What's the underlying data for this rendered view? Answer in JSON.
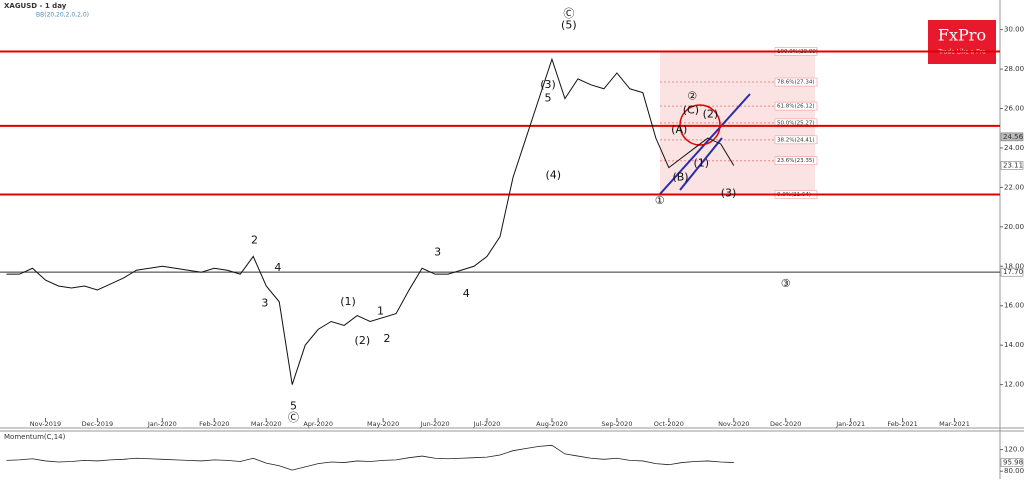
{
  "chart_data": {
    "type": "line",
    "title": "XAGUSD - 1 day",
    "subtitle": "BB(20,20,2,0,2,0)",
    "categories": [
      null,
      null,
      null,
      "Nov-2019",
      null,
      null,
      null,
      "Dec-2019",
      null,
      null,
      null,
      null,
      "Jan-2020",
      null,
      null,
      null,
      "Feb-2020",
      null,
      null,
      null,
      "Mar-2020",
      null,
      null,
      null,
      "Apr-2020",
      null,
      null,
      null,
      null,
      "May-2020",
      null,
      null,
      null,
      "Jun-2020",
      null,
      null,
      null,
      "Jul-2020",
      null,
      null,
      null,
      null,
      "Aug-2020",
      null,
      null,
      null,
      null,
      "Sep-2020",
      null,
      null,
      null,
      "Oct-2020",
      null,
      null,
      null,
      null,
      "Nov-2020",
      null,
      null,
      null,
      "Dec-2020",
      null,
      null,
      null,
      null,
      "Jan-2021",
      null,
      null,
      null,
      "Feb-2021",
      null,
      null,
      null,
      "Mar-2021",
      null,
      null,
      null
    ],
    "series": [
      {
        "name": "XAGUSD",
        "color": "#111111",
        "values": [
          17.6,
          17.6,
          17.9,
          17.3,
          17.0,
          16.9,
          17.0,
          16.8,
          17.1,
          17.4,
          17.8,
          17.9,
          18.0,
          17.9,
          17.8,
          17.7,
          17.9,
          17.8,
          17.6,
          18.5,
          17.0,
          16.2,
          12.0,
          14.0,
          14.8,
          15.2,
          15.0,
          15.5,
          15.2,
          15.4,
          15.6,
          16.8,
          17.9,
          17.6,
          17.6,
          17.8,
          18.0,
          18.5,
          19.5,
          22.5,
          24.5,
          26.5,
          28.5,
          26.5,
          27.5,
          27.2,
          27.0,
          27.8,
          27.0,
          26.8,
          24.5,
          23.0,
          23.5,
          24.0,
          24.5,
          24.2,
          23.11,
          null,
          null,
          null,
          null,
          null,
          null,
          null,
          null,
          null,
          null,
          null,
          null,
          null,
          null,
          null,
          null,
          null,
          null,
          null,
          null
        ]
      }
    ],
    "ylim": [
      9.8,
      31.5
    ],
    "yticks": [
      {
        "value": 12,
        "label": "12.00"
      },
      {
        "value": 14,
        "label": "14.00"
      },
      {
        "value": 16,
        "label": "16.00"
      },
      {
        "value": 18,
        "label": "18.00"
      },
      {
        "value": 20,
        "label": "20.00"
      },
      {
        "value": 22,
        "label": "22.00"
      },
      {
        "value": 24,
        "label": "24.00"
      },
      {
        "value": 26,
        "label": "26.00"
      },
      {
        "value": 28,
        "label": "28.00"
      },
      {
        "value": 30,
        "label": "30.00"
      }
    ],
    "levels": [
      {
        "value": 28.89,
        "color": "#e00000"
      },
      {
        "value": 25.12,
        "color": "#e00000"
      },
      {
        "value": 21.64,
        "color": "#e00000"
      },
      {
        "value": 17.7,
        "color": "#333333"
      }
    ],
    "markers": [
      {
        "value": 24.56,
        "label": "24.56",
        "color": "#bbbbbb"
      },
      {
        "value": 23.11,
        "label": "23.11",
        "color": "#ffffff"
      },
      {
        "value": 17.7,
        "label": "17.70",
        "color": "#ffffff"
      }
    ],
    "fibonacci": [
      {
        "value": 28.89,
        "label": "100.0%(28.89)"
      },
      {
        "value": 27.34,
        "label": "78.6%(27.34)"
      },
      {
        "value": 26.12,
        "label": "61.8%(26.12)"
      },
      {
        "value": 25.27,
        "label": "50.0%(25.27)"
      },
      {
        "value": 24.41,
        "label": "38.2%(24.41)"
      },
      {
        "value": 23.35,
        "label": "23.6%(23.35)"
      },
      {
        "value": 21.64,
        "label": "0.0%(21.64)"
      }
    ],
    "annotations": [
      {
        "text": "2",
        "x": 19.1,
        "y": 19.3
      },
      {
        "text": "3",
        "x": 19.9,
        "y": 16.1
      },
      {
        "text": "4",
        "x": 20.9,
        "y": 17.9
      },
      {
        "text": "5",
        "x": 22.1,
        "y": 10.9
      },
      {
        "text": "Ⓒ",
        "x": 22.1,
        "y": 10.3
      },
      {
        "text": "(1)",
        "x": 26.3,
        "y": 16.2
      },
      {
        "text": "(2)",
        "x": 27.4,
        "y": 14.2
      },
      {
        "text": "1",
        "x": 28.8,
        "y": 15.7
      },
      {
        "text": "2",
        "x": 29.3,
        "y": 14.3
      },
      {
        "text": "3",
        "x": 33.2,
        "y": 18.7
      },
      {
        "text": "4",
        "x": 35.4,
        "y": 16.6
      },
      {
        "text": "(4)",
        "x": 42.1,
        "y": 22.6
      },
      {
        "text": "(3)",
        "x": 41.7,
        "y": 27.2
      },
      {
        "text": "5",
        "x": 41.7,
        "y": 26.5
      },
      {
        "text": "(5)",
        "x": 43.3,
        "y": 30.2
      },
      {
        "text": "Ⓒ",
        "x": 43.3,
        "y": 30.8
      },
      {
        "text": "①",
        "x": 50.3,
        "y": 21.3
      },
      {
        "text": "(A)",
        "x": 51.8,
        "y": 24.9
      },
      {
        "text": "(B)",
        "x": 51.9,
        "y": 22.5
      },
      {
        "text": "(C)",
        "x": 52.7,
        "y": 25.9
      },
      {
        "text": "②",
        "x": 52.8,
        "y": 26.6
      },
      {
        "text": "(2)",
        "x": 54.2,
        "y": 25.7
      },
      {
        "text": "(1)",
        "x": 53.5,
        "y": 23.2
      },
      {
        "text": "(3)",
        "x": 55.6,
        "y": 21.7
      },
      {
        "text": "③",
        "x": 60.0,
        "y": 17.1
      }
    ],
    "momentum": {
      "title": "Momentum(C,14)",
      "color": "#222222",
      "values": [
        100,
        101,
        103,
        99,
        97,
        98,
        100,
        99,
        101,
        102,
        104,
        103,
        102,
        101,
        100,
        99,
        101,
        100,
        98,
        104,
        95,
        90,
        82,
        88,
        94,
        97,
        96,
        99,
        98,
        100,
        101,
        105,
        108,
        104,
        103,
        104,
        105,
        106,
        110,
        118,
        122,
        126,
        128,
        112,
        108,
        104,
        102,
        104,
        100,
        99,
        94,
        92,
        96,
        98,
        99,
        97,
        95.98,
        null,
        null,
        null,
        null,
        null,
        null,
        null,
        null,
        null,
        null,
        null,
        null,
        null,
        null,
        null,
        null,
        null,
        null,
        null,
        null
      ],
      "ylim": [
        65.5,
        154.5
      ],
      "yticks": [
        {
          "value": 80,
          "label": "80.00"
        },
        {
          "value": 120,
          "label": "120.00"
        }
      ],
      "marker": {
        "value": 95.98,
        "label": "95.98"
      }
    },
    "logo": {
      "name": "FxPro",
      "tagline": "Trade Like a Pro"
    }
  }
}
